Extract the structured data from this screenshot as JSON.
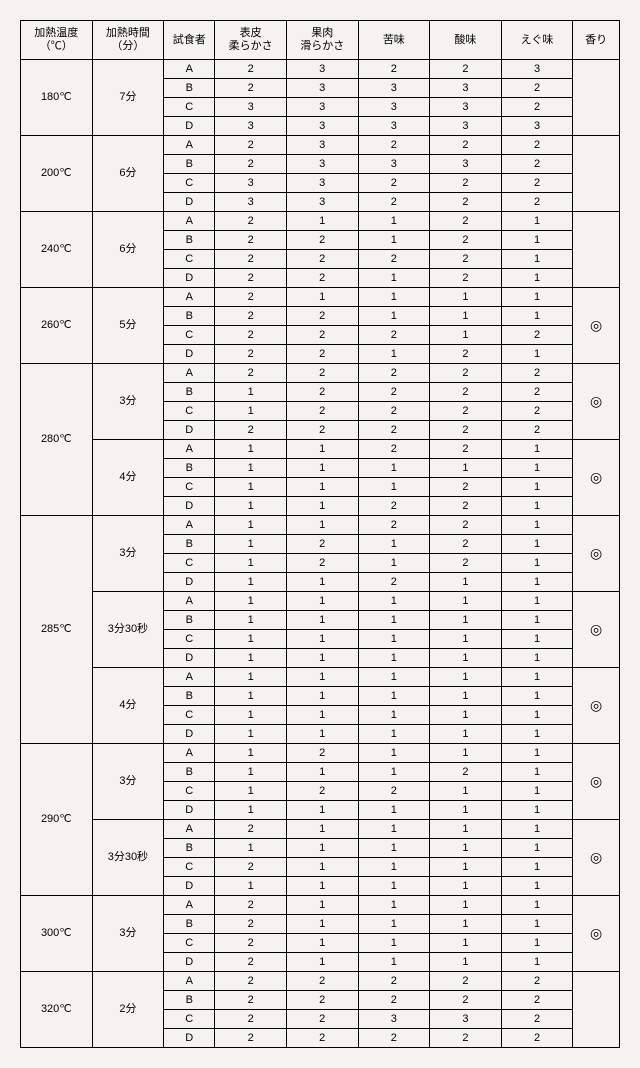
{
  "headers": {
    "temperature": "加熱温度\n（℃）",
    "time": "加熱時間\n（分）",
    "taster": "試食者",
    "skin_softness": "表皮\n柔らかさ",
    "flesh_smoothness": "果肉\n滑らかさ",
    "bitterness": "苦味",
    "sourness": "酸味",
    "astringency": "えぐ味",
    "aroma": "香り"
  },
  "tasters": [
    "A",
    "B",
    "C",
    "D"
  ],
  "aroma_mark": "◎",
  "groups": [
    {
      "temp": "180℃",
      "blocks": [
        {
          "time": "7分",
          "rows": [
            [
              2,
              3,
              2,
              2,
              3
            ],
            [
              2,
              3,
              3,
              3,
              2
            ],
            [
              3,
              3,
              3,
              3,
              2
            ],
            [
              3,
              3,
              3,
              3,
              3
            ]
          ],
          "aroma": false
        }
      ]
    },
    {
      "temp": "200℃",
      "blocks": [
        {
          "time": "6分",
          "rows": [
            [
              2,
              3,
              2,
              2,
              2
            ],
            [
              2,
              3,
              3,
              3,
              2
            ],
            [
              3,
              3,
              2,
              2,
              2
            ],
            [
              3,
              3,
              2,
              2,
              2
            ]
          ],
          "aroma": false
        }
      ]
    },
    {
      "temp": "240℃",
      "blocks": [
        {
          "time": "6分",
          "rows": [
            [
              2,
              1,
              1,
              2,
              1
            ],
            [
              2,
              2,
              1,
              2,
              1
            ],
            [
              2,
              2,
              2,
              2,
              1
            ],
            [
              2,
              2,
              1,
              2,
              1
            ]
          ],
          "aroma": false
        }
      ]
    },
    {
      "temp": "260℃",
      "blocks": [
        {
          "time": "5分",
          "rows": [
            [
              2,
              1,
              1,
              1,
              1
            ],
            [
              2,
              2,
              1,
              1,
              1
            ],
            [
              2,
              2,
              2,
              1,
              2
            ],
            [
              2,
              2,
              1,
              2,
              1
            ]
          ],
          "aroma": true
        }
      ]
    },
    {
      "temp": "280℃",
      "blocks": [
        {
          "time": "3分",
          "rows": [
            [
              2,
              2,
              2,
              2,
              2
            ],
            [
              1,
              2,
              2,
              2,
              2
            ],
            [
              1,
              2,
              2,
              2,
              2
            ],
            [
              2,
              2,
              2,
              2,
              2
            ]
          ],
          "aroma": true
        },
        {
          "time": "4分",
          "rows": [
            [
              1,
              1,
              2,
              2,
              1
            ],
            [
              1,
              1,
              1,
              1,
              1
            ],
            [
              1,
              1,
              1,
              2,
              1
            ],
            [
              1,
              1,
              2,
              2,
              1
            ]
          ],
          "aroma": true
        }
      ]
    },
    {
      "temp": "285℃",
      "blocks": [
        {
          "time": "3分",
          "rows": [
            [
              1,
              1,
              2,
              2,
              1
            ],
            [
              1,
              2,
              1,
              2,
              1
            ],
            [
              1,
              2,
              1,
              2,
              1
            ],
            [
              1,
              1,
              2,
              1,
              1
            ]
          ],
          "aroma": true
        },
        {
          "time": "3分30秒",
          "rows": [
            [
              1,
              1,
              1,
              1,
              1
            ],
            [
              1,
              1,
              1,
              1,
              1
            ],
            [
              1,
              1,
              1,
              1,
              1
            ],
            [
              1,
              1,
              1,
              1,
              1
            ]
          ],
          "aroma": true
        },
        {
          "time": "4分",
          "rows": [
            [
              1,
              1,
              1,
              1,
              1
            ],
            [
              1,
              1,
              1,
              1,
              1
            ],
            [
              1,
              1,
              1,
              1,
              1
            ],
            [
              1,
              1,
              1,
              1,
              1
            ]
          ],
          "aroma": true
        }
      ]
    },
    {
      "temp": "290℃",
      "blocks": [
        {
          "time": "3分",
          "rows": [
            [
              1,
              2,
              1,
              1,
              1
            ],
            [
              1,
              1,
              1,
              2,
              1
            ],
            [
              1,
              2,
              2,
              1,
              1
            ],
            [
              1,
              1,
              1,
              1,
              1
            ]
          ],
          "aroma": true
        },
        {
          "time": "3分30秒",
          "rows": [
            [
              2,
              1,
              1,
              1,
              1
            ],
            [
              1,
              1,
              1,
              1,
              1
            ],
            [
              2,
              1,
              1,
              1,
              1
            ],
            [
              1,
              1,
              1,
              1,
              1
            ]
          ],
          "aroma": true
        }
      ]
    },
    {
      "temp": "300℃",
      "blocks": [
        {
          "time": "3分",
          "rows": [
            [
              2,
              1,
              1,
              1,
              1
            ],
            [
              2,
              1,
              1,
              1,
              1
            ],
            [
              2,
              1,
              1,
              1,
              1
            ],
            [
              2,
              1,
              1,
              1,
              1
            ]
          ],
          "aroma": true
        }
      ]
    },
    {
      "temp": "320℃",
      "blocks": [
        {
          "time": "2分",
          "rows": [
            [
              2,
              2,
              2,
              2,
              2
            ],
            [
              2,
              2,
              2,
              2,
              2
            ],
            [
              2,
              2,
              3,
              3,
              2
            ],
            [
              2,
              2,
              2,
              2,
              2
            ]
          ],
          "aroma": false
        }
      ]
    }
  ]
}
